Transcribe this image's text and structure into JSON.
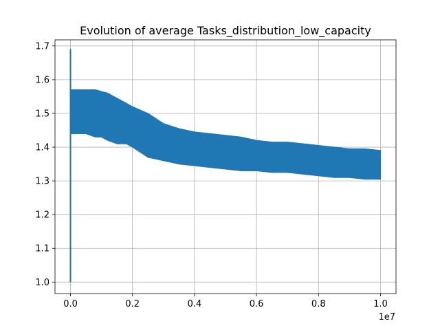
{
  "chart_data": {
    "type": "line",
    "title": "Evolution of average Tasks_distribution_low_capacity",
    "xlabel": "",
    "ylabel": "",
    "x_offset_label": "1e7",
    "xlim": [
      -0.05,
      1.05
    ],
    "ylim": [
      0.966,
      1.718
    ],
    "grid": true,
    "x_ticks": [
      {
        "value": 0.0,
        "label": "0.0"
      },
      {
        "value": 0.2,
        "label": "0.2"
      },
      {
        "value": 0.4,
        "label": "0.4"
      },
      {
        "value": 0.6,
        "label": "0.6"
      },
      {
        "value": 0.8,
        "label": "0.8"
      },
      {
        "value": 1.0,
        "label": "1.0"
      }
    ],
    "y_ticks": [
      {
        "value": 1.0,
        "label": "1.0"
      },
      {
        "value": 1.1,
        "label": "1.1"
      },
      {
        "value": 1.2,
        "label": "1.2"
      },
      {
        "value": 1.3,
        "label": "1.3"
      },
      {
        "value": 1.4,
        "label": "1.4"
      },
      {
        "value": 1.5,
        "label": "1.5"
      },
      {
        "value": 1.6,
        "label": "1.6"
      },
      {
        "value": 1.7,
        "label": "1.7"
      }
    ],
    "series": [
      {
        "color": "#1f77b4",
        "x": [
          0.0,
          0.0,
          0.0,
          0.002,
          0.004,
          0.01,
          0.02,
          0.05,
          0.08,
          0.1,
          0.12,
          0.15,
          0.18,
          0.2,
          0.25,
          0.3,
          0.35,
          0.4,
          0.45,
          0.5,
          0.55,
          0.6,
          0.65,
          0.7,
          0.75,
          0.8,
          0.85,
          0.9,
          0.95,
          1.0
        ],
        "y": [
          1.0,
          1.69,
          1.48,
          1.5,
          1.5,
          1.5,
          1.5,
          1.505,
          1.505,
          1.5,
          1.49,
          1.47,
          1.46,
          1.45,
          1.43,
          1.415,
          1.405,
          1.395,
          1.39,
          1.385,
          1.38,
          1.375,
          1.37,
          1.37,
          1.365,
          1.36,
          1.355,
          1.355,
          1.35,
          1.35
        ],
        "band_low": [
          1.0,
          1.69,
          1.48,
          1.44,
          1.44,
          1.44,
          1.44,
          1.44,
          1.43,
          1.43,
          1.42,
          1.41,
          1.41,
          1.4,
          1.37,
          1.36,
          1.35,
          1.345,
          1.34,
          1.335,
          1.33,
          1.33,
          1.325,
          1.325,
          1.32,
          1.315,
          1.31,
          1.31,
          1.305,
          1.305
        ],
        "band_high": [
          1.0,
          1.69,
          1.48,
          1.57,
          1.57,
          1.57,
          1.57,
          1.57,
          1.57,
          1.565,
          1.56,
          1.545,
          1.53,
          1.52,
          1.5,
          1.47,
          1.455,
          1.445,
          1.44,
          1.435,
          1.43,
          1.42,
          1.415,
          1.415,
          1.41,
          1.405,
          1.4,
          1.395,
          1.395,
          1.39
        ]
      }
    ]
  }
}
